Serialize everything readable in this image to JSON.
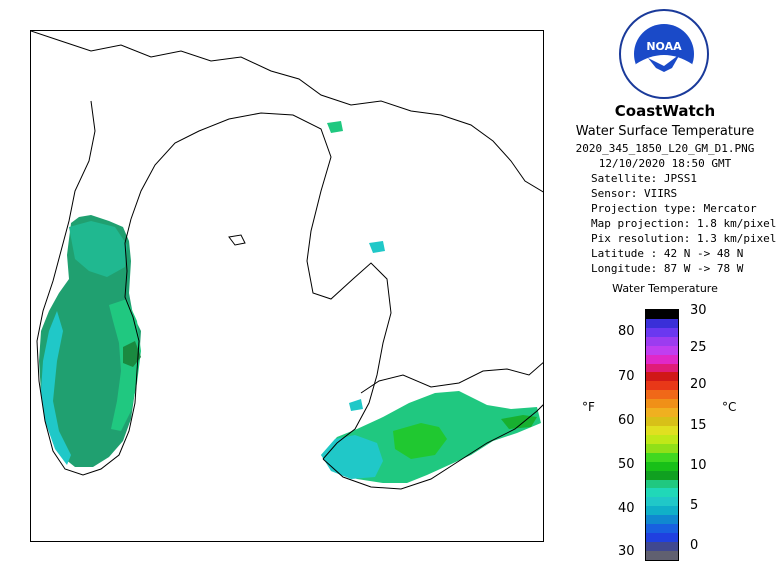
{
  "header": {
    "agency_logo": "noaa-logo",
    "logo_text": "NOAA",
    "title": "CoastWatch",
    "subtitle": "Water Surface Temperature"
  },
  "metadata": {
    "filename": "2020_345_1850_L20_GM_D1.PNG",
    "datetime": "12/10/2020    18:50 GMT",
    "satellite": "Satellite: JPSS1",
    "sensor": "Sensor: VIIRS",
    "projection_type": "Projection type:  Mercator",
    "map_projection": "Map projection: 1.8 km/pixel",
    "pix_resolution": "Pix resolution: 1.3 km/pixel",
    "latitude": "Latitude : 42 N  -> 48 N",
    "longitude": "Longitude: 87 W  -> 78 W"
  },
  "legend": {
    "title": "Water Temperature",
    "left_unit": "°F",
    "right_unit": "°C",
    "fahrenheit_ticks": [
      "80",
      "70",
      "60",
      "50",
      "40",
      "30"
    ],
    "celsius_ticks": [
      "30",
      "25",
      "20",
      "15",
      "10",
      "5",
      "0"
    ],
    "colors": [
      "#000000",
      "#3a2fd8",
      "#6a38f0",
      "#9c3cf0",
      "#c03ef0",
      "#e028c8",
      "#e01c78",
      "#d01818",
      "#e83818",
      "#f06818",
      "#f09018",
      "#f0b020",
      "#d8c018",
      "#e0e020",
      "#c0e818",
      "#90e018",
      "#40d820",
      "#18c018",
      "#10a020",
      "#20c880",
      "#20d8b8",
      "#20c8c8",
      "#10b0c8",
      "#1088d0",
      "#1860e0",
      "#2040e0",
      "#404890",
      "#606070"
    ]
  },
  "colors": {
    "warm_water": "#20a060",
    "mid_water": "#20c880",
    "cool_water": "#20c8c8",
    "green_water": "#20c830",
    "coast_line": "#000000"
  }
}
